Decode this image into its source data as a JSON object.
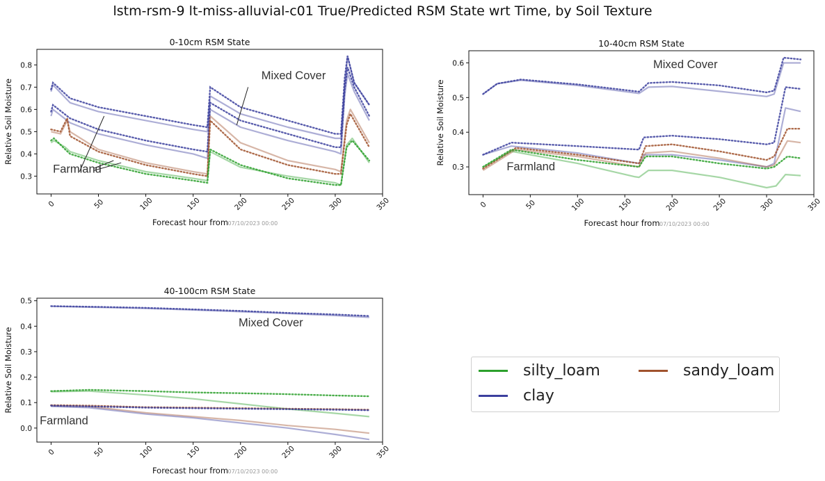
{
  "title": "lstm-rsm-9 lt-miss-alluvial-c01 True/Predicted RSM State wrt Time, by Soil Texture",
  "colors": {
    "silty_loam": "#2ca02c",
    "sandy_loam": "#a0522d",
    "clay": "#3b3f9e"
  },
  "legend": {
    "items": [
      {
        "label": "silty_loam",
        "color": "#2ca02c"
      },
      {
        "label": "sandy_loam",
        "color": "#a0522d"
      },
      {
        "label": "clay",
        "color": "#3b3f9e"
      }
    ]
  },
  "chart_data": [
    {
      "type": "line",
      "title": "0-10cm RSM State",
      "xlabel": "Forecast hour from",
      "xlabel_date": "07/10/2023 00:00",
      "ylabel": "Relative Soil Moisture",
      "xlim": [
        -15,
        350
      ],
      "ylim": [
        0.22,
        0.87
      ],
      "xticks": [
        0,
        50,
        100,
        150,
        200,
        250,
        300,
        350
      ],
      "yticks": [
        0.3,
        0.4,
        0.5,
        0.6,
        0.7,
        0.8
      ],
      "grid": false,
      "annotations": [
        {
          "text": "Mixed Cover",
          "x": 222,
          "y": 0.735
        },
        {
          "text": "Farmland",
          "x": 2,
          "y": 0.315
        }
      ],
      "series": [
        {
          "name": "clay",
          "kind": "true",
          "x": [
            0,
            2,
            20,
            50,
            100,
            150,
            165,
            168,
            200,
            250,
            300,
            306,
            310,
            313,
            320,
            336
          ],
          "y": [
            0.68,
            0.71,
            0.63,
            0.59,
            0.55,
            0.51,
            0.5,
            0.66,
            0.58,
            0.52,
            0.47,
            0.47,
            0.7,
            0.84,
            0.72,
            0.62
          ]
        },
        {
          "name": "clay",
          "kind": "predicted",
          "x": [
            0,
            2,
            20,
            50,
            100,
            150,
            165,
            168,
            200,
            250,
            300,
            306,
            310,
            313,
            320,
            336
          ],
          "y": [
            0.69,
            0.72,
            0.65,
            0.61,
            0.57,
            0.53,
            0.52,
            0.7,
            0.61,
            0.55,
            0.49,
            0.49,
            0.74,
            0.84,
            0.72,
            0.62
          ]
        },
        {
          "name": "clay",
          "kind": "true",
          "x": [
            0,
            2,
            20,
            50,
            100,
            150,
            165,
            168,
            200,
            250,
            300,
            306,
            310,
            313,
            320,
            336
          ],
          "y": [
            0.57,
            0.6,
            0.54,
            0.49,
            0.44,
            0.4,
            0.38,
            0.6,
            0.52,
            0.46,
            0.41,
            0.4,
            0.66,
            0.76,
            0.68,
            0.55
          ]
        },
        {
          "name": "clay",
          "kind": "predicted",
          "x": [
            0,
            2,
            20,
            50,
            100,
            150,
            165,
            168,
            200,
            250,
            300,
            306,
            310,
            313,
            320,
            336
          ],
          "y": [
            0.59,
            0.62,
            0.56,
            0.51,
            0.46,
            0.42,
            0.41,
            0.63,
            0.55,
            0.49,
            0.43,
            0.43,
            0.69,
            0.79,
            0.7,
            0.57
          ]
        },
        {
          "name": "sandy_loam",
          "kind": "true",
          "x": [
            0,
            10,
            17,
            20,
            50,
            100,
            150,
            165,
            168,
            200,
            250,
            300,
            306,
            312,
            316,
            336
          ],
          "y": [
            0.5,
            0.49,
            0.55,
            0.5,
            0.42,
            0.36,
            0.32,
            0.31,
            0.57,
            0.45,
            0.37,
            0.33,
            0.32,
            0.55,
            0.6,
            0.45
          ]
        },
        {
          "name": "sandy_loam",
          "kind": "predicted",
          "x": [
            0,
            10,
            17,
            20,
            50,
            100,
            150,
            165,
            168,
            200,
            250,
            300,
            306,
            312,
            316,
            336
          ],
          "y": [
            0.51,
            0.5,
            0.56,
            0.48,
            0.41,
            0.35,
            0.31,
            0.3,
            0.55,
            0.42,
            0.35,
            0.31,
            0.31,
            0.53,
            0.58,
            0.43
          ]
        },
        {
          "name": "silty_loam",
          "kind": "true",
          "x": [
            0,
            3,
            15,
            20,
            50,
            100,
            150,
            165,
            168,
            200,
            250,
            300,
            306,
            312,
            318,
            336
          ],
          "y": [
            0.45,
            0.46,
            0.43,
            0.41,
            0.37,
            0.32,
            0.29,
            0.28,
            0.41,
            0.34,
            0.3,
            0.27,
            0.26,
            0.44,
            0.47,
            0.36
          ]
        },
        {
          "name": "silty_loam",
          "kind": "predicted",
          "x": [
            0,
            3,
            15,
            20,
            50,
            100,
            150,
            165,
            168,
            200,
            250,
            300,
            306,
            312,
            318,
            336
          ],
          "y": [
            0.46,
            0.47,
            0.42,
            0.4,
            0.36,
            0.31,
            0.28,
            0.27,
            0.42,
            0.35,
            0.29,
            0.26,
            0.26,
            0.43,
            0.46,
            0.37
          ]
        }
      ]
    },
    {
      "type": "line",
      "title": "10-40cm RSM State",
      "xlabel": "Forecast hour from",
      "xlabel_date": "07/10/2023 00:00",
      "ylabel": "Relative Soil Moisture",
      "xlim": [
        -15,
        350
      ],
      "ylim": [
        0.22,
        0.635
      ],
      "xticks": [
        0,
        50,
        100,
        150,
        200,
        250,
        300,
        350
      ],
      "yticks": [
        0.3,
        0.4,
        0.5,
        0.6
      ],
      "grid": false,
      "annotations": [
        {
          "text": "Mixed Cover",
          "x": 180,
          "y": 0.585
        },
        {
          "text": "Farmland",
          "x": 25,
          "y": 0.29
        }
      ],
      "series": [
        {
          "name": "clay",
          "kind": "true",
          "x": [
            0,
            15,
            40,
            100,
            165,
            175,
            200,
            250,
            300,
            308,
            318,
            336
          ],
          "y": [
            0.51,
            0.54,
            0.55,
            0.535,
            0.512,
            0.53,
            0.532,
            0.518,
            0.503,
            0.51,
            0.6,
            0.6
          ]
        },
        {
          "name": "clay",
          "kind": "predicted",
          "x": [
            0,
            15,
            40,
            100,
            165,
            175,
            200,
            250,
            300,
            308,
            318,
            336
          ],
          "y": [
            0.51,
            0.54,
            0.552,
            0.538,
            0.517,
            0.542,
            0.545,
            0.535,
            0.515,
            0.52,
            0.615,
            0.61
          ]
        },
        {
          "name": "clay",
          "kind": "true",
          "x": [
            0,
            30,
            100,
            165,
            170,
            200,
            250,
            300,
            308,
            320,
            336
          ],
          "y": [
            0.335,
            0.36,
            0.34,
            0.31,
            0.335,
            0.335,
            0.32,
            0.3,
            0.31,
            0.47,
            0.46
          ]
        },
        {
          "name": "clay",
          "kind": "predicted",
          "x": [
            0,
            30,
            100,
            165,
            170,
            200,
            250,
            300,
            308,
            320,
            336
          ],
          "y": [
            0.335,
            0.37,
            0.36,
            0.35,
            0.385,
            0.39,
            0.38,
            0.365,
            0.37,
            0.53,
            0.525
          ]
        },
        {
          "name": "sandy_loam",
          "kind": "true",
          "x": [
            0,
            35,
            100,
            165,
            172,
            200,
            250,
            300,
            308,
            322,
            336
          ],
          "y": [
            0.29,
            0.35,
            0.33,
            0.3,
            0.34,
            0.345,
            0.325,
            0.3,
            0.305,
            0.375,
            0.37
          ]
        },
        {
          "name": "sandy_loam",
          "kind": "predicted",
          "x": [
            0,
            35,
            100,
            165,
            172,
            200,
            250,
            300,
            308,
            322,
            336
          ],
          "y": [
            0.295,
            0.355,
            0.335,
            0.31,
            0.36,
            0.365,
            0.345,
            0.32,
            0.33,
            0.41,
            0.41
          ]
        },
        {
          "name": "silty_loam",
          "kind": "true",
          "x": [
            0,
            30,
            100,
            160,
            165,
            175,
            200,
            250,
            300,
            310,
            320,
            336
          ],
          "y": [
            0.3,
            0.345,
            0.31,
            0.272,
            0.27,
            0.29,
            0.29,
            0.27,
            0.24,
            0.245,
            0.278,
            0.275
          ]
        },
        {
          "name": "silty_loam",
          "kind": "predicted",
          "x": [
            0,
            30,
            100,
            165,
            172,
            200,
            250,
            300,
            308,
            322,
            336
          ],
          "y": [
            0.3,
            0.35,
            0.32,
            0.3,
            0.33,
            0.33,
            0.31,
            0.295,
            0.3,
            0.33,
            0.325
          ]
        }
      ]
    },
    {
      "type": "line",
      "title": "40-100cm RSM State",
      "xlabel": "Forecast hour from",
      "xlabel_date": "07/10/2023 00:00",
      "ylabel": "Relative Soil Moisture",
      "xlim": [
        -15,
        350
      ],
      "ylim": [
        -0.055,
        0.51
      ],
      "xticks": [
        0,
        50,
        100,
        150,
        200,
        250,
        300,
        350
      ],
      "yticks": [
        0.0,
        0.1,
        0.2,
        0.3,
        0.4,
        0.5
      ],
      "grid": false,
      "annotations": [
        {
          "text": "Mixed Cover",
          "x": 198,
          "y": 0.4
        },
        {
          "text": "Farmland",
          "x": -12,
          "y": 0.015
        }
      ],
      "series": [
        {
          "name": "clay",
          "kind": "true",
          "x": [
            0,
            50,
            100,
            150,
            200,
            250,
            300,
            336
          ],
          "y": [
            0.478,
            0.474,
            0.47,
            0.464,
            0.457,
            0.45,
            0.442,
            0.435
          ]
        },
        {
          "name": "clay",
          "kind": "predicted",
          "x": [
            0,
            50,
            100,
            150,
            200,
            250,
            300,
            336
          ],
          "y": [
            0.479,
            0.476,
            0.472,
            0.466,
            0.46,
            0.452,
            0.446,
            0.44
          ]
        },
        {
          "name": "silty_loam",
          "kind": "true",
          "x": [
            0,
            40,
            100,
            150,
            200,
            250,
            300,
            336
          ],
          "y": [
            0.143,
            0.145,
            0.13,
            0.115,
            0.095,
            0.075,
            0.058,
            0.045
          ]
        },
        {
          "name": "silty_loam",
          "kind": "predicted",
          "x": [
            0,
            40,
            100,
            150,
            200,
            250,
            300,
            336
          ],
          "y": [
            0.145,
            0.15,
            0.145,
            0.14,
            0.137,
            0.133,
            0.128,
            0.125
          ]
        },
        {
          "name": "sandy_loam",
          "kind": "true",
          "x": [
            0,
            40,
            100,
            150,
            200,
            250,
            300,
            336
          ],
          "y": [
            0.088,
            0.085,
            0.06,
            0.045,
            0.03,
            0.01,
            -0.005,
            -0.02
          ]
        },
        {
          "name": "sandy_loam",
          "kind": "predicted",
          "x": [
            0,
            40,
            100,
            150,
            200,
            250,
            300,
            336
          ],
          "y": [
            0.09,
            0.088,
            0.082,
            0.08,
            0.078,
            0.076,
            0.074,
            0.072
          ]
        },
        {
          "name": "clay",
          "kind": "true",
          "x": [
            0,
            40,
            100,
            150,
            200,
            250,
            300,
            336
          ],
          "y": [
            0.085,
            0.08,
            0.055,
            0.04,
            0.02,
            0.0,
            -0.025,
            -0.045
          ]
        },
        {
          "name": "clay",
          "kind": "predicted",
          "x": [
            0,
            40,
            100,
            150,
            200,
            250,
            300,
            336
          ],
          "y": [
            0.088,
            0.085,
            0.08,
            0.078,
            0.076,
            0.074,
            0.072,
            0.07
          ]
        }
      ]
    }
  ]
}
